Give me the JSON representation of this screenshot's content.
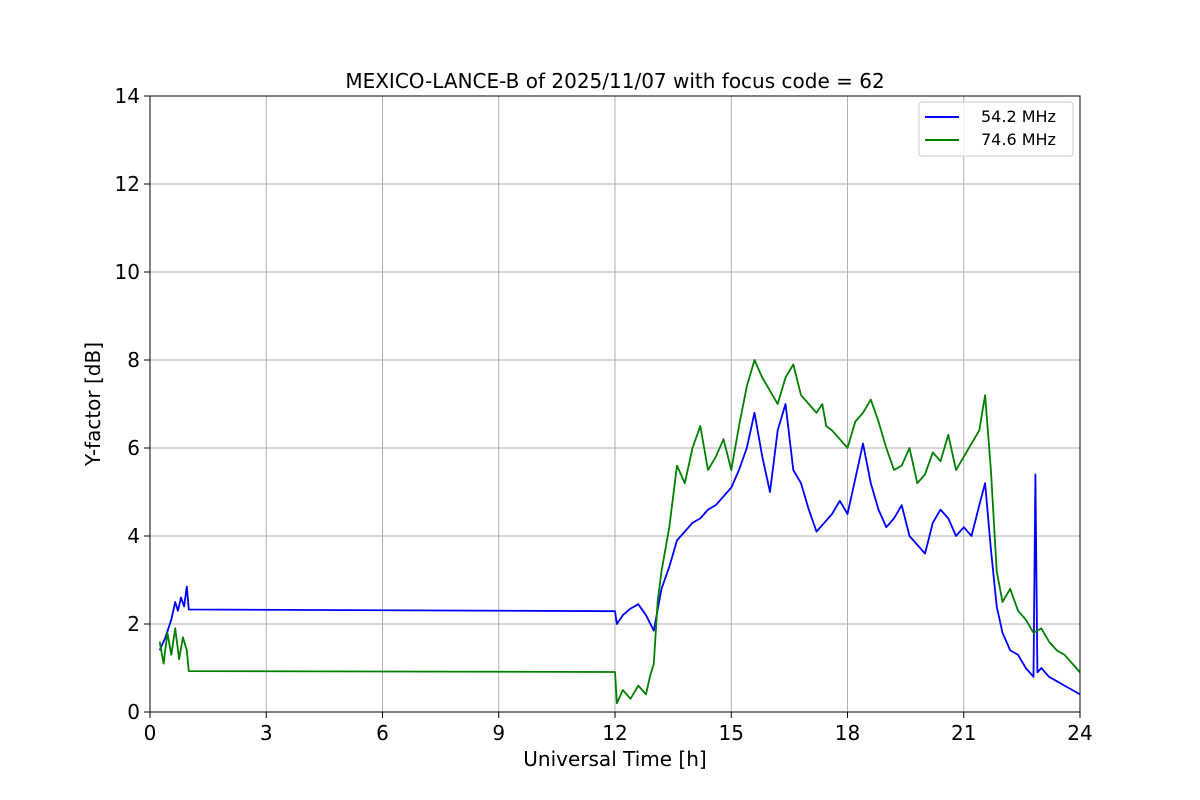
{
  "chart_data": {
    "type": "line",
    "title": "MEXICO-LANCE-B of 2025/11/07 with focus code = 62",
    "xlabel": "Universal Time [h]",
    "ylabel": "Y-factor [dB]",
    "xlim": [
      0,
      24
    ],
    "ylim": [
      0,
      14
    ],
    "xticks": [
      0,
      3,
      6,
      9,
      12,
      15,
      18,
      21,
      24
    ],
    "yticks": [
      0,
      2,
      4,
      6,
      8,
      10,
      12,
      14
    ],
    "grid": true,
    "legend_position": "top-right",
    "series": [
      {
        "name": "54.2 MHz",
        "color": "#0000ff",
        "x": [
          0.25,
          0.4,
          0.55,
          0.65,
          0.72,
          0.8,
          0.88,
          0.95,
          1.0,
          12.0,
          12.05,
          12.2,
          12.4,
          12.6,
          12.8,
          13.0,
          13.2,
          13.4,
          13.6,
          13.8,
          14.0,
          14.2,
          14.4,
          14.6,
          14.8,
          15.0,
          15.2,
          15.4,
          15.6,
          15.8,
          16.0,
          16.2,
          16.4,
          16.6,
          16.8,
          17.0,
          17.2,
          17.4,
          17.6,
          17.8,
          18.0,
          18.2,
          18.4,
          18.6,
          18.8,
          19.0,
          19.2,
          19.4,
          19.6,
          19.8,
          20.0,
          20.2,
          20.4,
          20.6,
          20.8,
          21.0,
          21.2,
          21.4,
          21.55,
          21.7,
          21.85,
          22.0,
          22.2,
          22.4,
          22.6,
          22.8,
          22.85,
          22.9,
          23.0,
          23.2,
          23.4,
          23.6,
          23.8,
          24.0
        ],
        "values": [
          1.4,
          1.7,
          2.1,
          2.5,
          2.3,
          2.6,
          2.4,
          2.85,
          2.33,
          2.29,
          2.0,
          2.2,
          2.35,
          2.45,
          2.2,
          1.85,
          2.8,
          3.3,
          3.9,
          4.1,
          4.3,
          4.4,
          4.6,
          4.7,
          4.9,
          5.1,
          5.5,
          6.0,
          6.8,
          5.8,
          5.0,
          6.4,
          7.0,
          5.5,
          5.2,
          4.6,
          4.1,
          4.3,
          4.5,
          4.8,
          4.5,
          5.3,
          6.1,
          5.2,
          4.6,
          4.2,
          4.4,
          4.7,
          4.0,
          3.8,
          3.6,
          4.3,
          4.6,
          4.4,
          4.0,
          4.2,
          4.0,
          4.7,
          5.2,
          3.7,
          2.4,
          1.8,
          1.4,
          1.3,
          1.0,
          0.8,
          5.4,
          0.9,
          1.0,
          0.8,
          0.7,
          0.6,
          0.5,
          0.4
        ]
      },
      {
        "name": "74.6 MHz",
        "color": "#008000",
        "x": [
          0.25,
          0.35,
          0.45,
          0.55,
          0.65,
          0.75,
          0.85,
          0.95,
          1.0,
          12.0,
          12.05,
          12.2,
          12.4,
          12.6,
          12.8,
          12.9,
          13.0,
          13.1,
          13.2,
          13.4,
          13.6,
          13.8,
          14.0,
          14.2,
          14.4,
          14.6,
          14.8,
          15.0,
          15.2,
          15.4,
          15.6,
          15.8,
          16.0,
          16.2,
          16.4,
          16.6,
          16.8,
          17.0,
          17.2,
          17.35,
          17.45,
          17.6,
          17.8,
          18.0,
          18.2,
          18.4,
          18.6,
          18.8,
          19.0,
          19.2,
          19.4,
          19.6,
          19.8,
          20.0,
          20.2,
          20.4,
          20.6,
          20.8,
          21.0,
          21.2,
          21.4,
          21.55,
          21.7,
          21.85,
          22.0,
          22.2,
          22.4,
          22.6,
          22.8,
          23.0,
          23.2,
          23.4,
          23.6,
          23.8,
          24.0
        ],
        "values": [
          1.6,
          1.1,
          1.8,
          1.3,
          1.9,
          1.2,
          1.7,
          1.4,
          0.93,
          0.91,
          0.2,
          0.5,
          0.3,
          0.6,
          0.4,
          0.8,
          1.1,
          2.5,
          3.2,
          4.2,
          5.6,
          5.2,
          6.0,
          6.5,
          5.5,
          5.8,
          6.2,
          5.5,
          6.5,
          7.4,
          8.0,
          7.6,
          7.3,
          7.0,
          7.6,
          7.9,
          7.2,
          7.0,
          6.8,
          7.0,
          6.5,
          6.4,
          6.2,
          6.0,
          6.6,
          6.8,
          7.1,
          6.6,
          6.0,
          5.5,
          5.6,
          6.0,
          5.2,
          5.4,
          5.9,
          5.7,
          6.3,
          5.5,
          5.8,
          6.1,
          6.4,
          7.2,
          5.5,
          3.2,
          2.5,
          2.8,
          2.3,
          2.1,
          1.8,
          1.9,
          1.6,
          1.4,
          1.3,
          1.1,
          0.9
        ]
      }
    ]
  }
}
